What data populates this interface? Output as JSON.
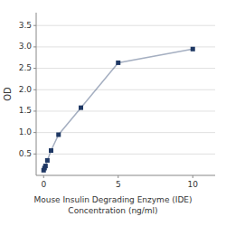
{
  "chart_data": {
    "type": "line",
    "x": [
      0,
      0.0625,
      0.125,
      0.25,
      0.5,
      1,
      2.5,
      5,
      10
    ],
    "values": [
      0.12,
      0.17,
      0.22,
      0.35,
      0.58,
      0.95,
      1.58,
      2.63,
      2.95
    ],
    "color": "#1f3864",
    "marker": "square",
    "x_label": "Mouse Insulin Degrading Enzyme (IDE)\nConcentration (ng/ml)",
    "y_label": "OD",
    "xlim": [
      -0.5,
      11.5
    ],
    "ylim": [
      0,
      3.8
    ],
    "xticks": [
      0,
      5,
      10
    ],
    "yticks": [
      0.5,
      {
        "value": 1.0,
        "label": "1.0"
      },
      1.5,
      {
        "value": 2.0,
        "label": "2.0"
      },
      2.5,
      {
        "value": 3.0,
        "label": "3.0"
      },
      3.5
    ],
    "grid": true
  }
}
